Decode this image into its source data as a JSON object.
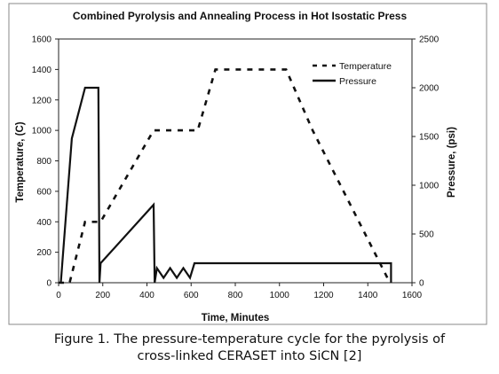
{
  "caption": {
    "line1": "Figure 1. The pressure-temperature cycle for the pyrolysis of",
    "line2": "cross-linked CERASET into SiCN [2]"
  },
  "chart_data": {
    "type": "line",
    "title": "Combined Pyrolysis and Annealing Process in Hot Isostatic Press",
    "xlabel": "Time, Minutes",
    "ylabel": "Temperature, (C)",
    "y2label": "Pressure, (psi)",
    "xlim": [
      0,
      1600
    ],
    "ylim": [
      0,
      1600
    ],
    "y2lim": [
      0,
      2500
    ],
    "xticks": [
      "0",
      "200",
      "400",
      "600",
      "800",
      "1000",
      "1200",
      "1400",
      "1600"
    ],
    "yticks": [
      "0",
      "200",
      "400",
      "600",
      "800",
      "1000",
      "1200",
      "1400",
      "1600"
    ],
    "y2ticks": [
      "0",
      "500",
      "1000",
      "1500",
      "2000",
      "2500"
    ],
    "legend": {
      "placement": "top-right",
      "entries": [
        "Temperature",
        "Pressure"
      ]
    },
    "grid": false,
    "series": [
      {
        "name": "Temperature",
        "axis": "left",
        "style": "dashed",
        "x": [
          0,
          50,
          120,
          190,
          430,
          630,
          710,
          1030,
          1150,
          1500
        ],
        "y": [
          0,
          0,
          400,
          400,
          1000,
          1000,
          1400,
          1400,
          1000,
          0
        ]
      },
      {
        "name": "Pressure",
        "axis": "right",
        "style": "solid",
        "x": [
          10,
          60,
          120,
          180,
          185,
          190,
          430,
          435,
          445,
          475,
          505,
          535,
          565,
          595,
          615,
          1505,
          1505
        ],
        "y": [
          0,
          1480,
          2000,
          2000,
          0,
          200,
          800,
          0,
          150,
          50,
          150,
          50,
          150,
          50,
          200,
          200,
          0
        ]
      }
    ]
  }
}
